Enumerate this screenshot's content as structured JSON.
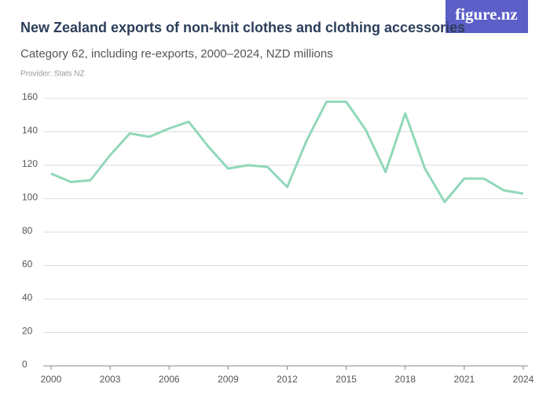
{
  "logo": "figure.nz",
  "chart_data": {
    "type": "line",
    "title": "New Zealand exports of non-knit clothes and clothing accessories",
    "subtitle": "Category 62, including re-exports, 2000–2024, NZD millions",
    "source": "Provider: Stats NZ",
    "x": [
      2000,
      2001,
      2002,
      2003,
      2004,
      2005,
      2006,
      2007,
      2008,
      2009,
      2010,
      2011,
      2012,
      2013,
      2014,
      2015,
      2016,
      2017,
      2018,
      2019,
      2020,
      2021,
      2022,
      2023,
      2024
    ],
    "values": [
      115,
      110,
      111,
      126,
      139,
      137,
      142,
      146,
      131,
      118,
      120,
      119,
      107,
      135,
      158,
      158,
      141,
      116,
      151,
      118,
      98,
      112,
      112,
      105,
      103
    ],
    "color": "#90d8b8",
    "xlim": [
      2000,
      2024
    ],
    "xticks": [
      2000,
      2003,
      2006,
      2009,
      2012,
      2015,
      2018,
      2021,
      2024
    ],
    "ylim": [
      0,
      160
    ],
    "yticks": [
      0,
      20,
      40,
      60,
      80,
      100,
      120,
      140,
      160
    ],
    "grid": true
  }
}
